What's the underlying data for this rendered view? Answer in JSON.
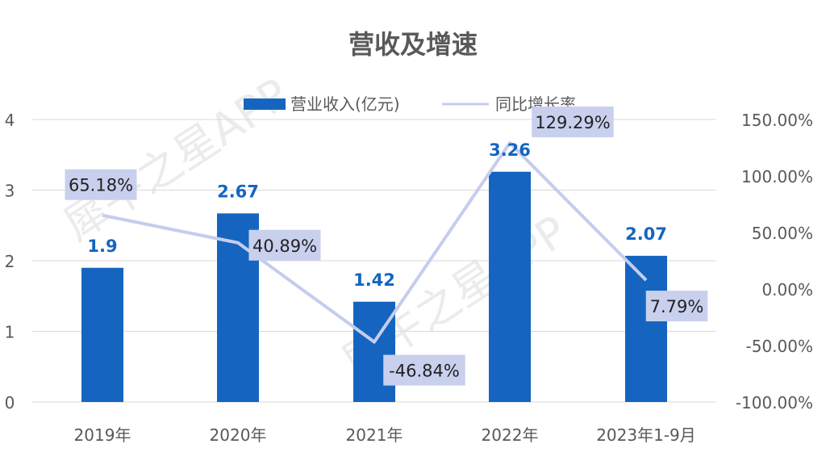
{
  "chart_data": {
    "type": "bar",
    "title": "营收及增速",
    "categories": [
      "2019年",
      "2020年",
      "2021年",
      "2022年",
      "2023年1-9月"
    ],
    "series": [
      {
        "name": "营业收入(亿元)",
        "type": "bar",
        "axis": "left",
        "values": [
          1.9,
          2.67,
          1.42,
          3.26,
          2.07
        ],
        "labels": [
          "1.9",
          "2.67",
          "1.42",
          "3.26",
          "2.07"
        ]
      },
      {
        "name": "同比增长率",
        "type": "line",
        "axis": "right",
        "values": [
          65.18,
          40.89,
          -46.84,
          129.29,
          7.79
        ],
        "labels": [
          "65.18%",
          "40.89%",
          "-46.84%",
          "129.29%",
          "7.79%"
        ]
      }
    ],
    "ylim_left": [
      0,
      4
    ],
    "yticks_left": [
      "0",
      "1",
      "2",
      "3",
      "4"
    ],
    "ylim_right": [
      -100,
      150
    ],
    "yticks_right": [
      "-100.00%",
      "-50.00%",
      "0.00%",
      "50.00%",
      "100.00%",
      "150.00%"
    ],
    "grid": true,
    "legend_position": "top",
    "colors": {
      "bar": "#1565c0",
      "line": "#c5cdee",
      "label_box": "#c9d0ee",
      "grid": "#d9d9d9"
    }
  },
  "watermark": "犀牛之星APP"
}
